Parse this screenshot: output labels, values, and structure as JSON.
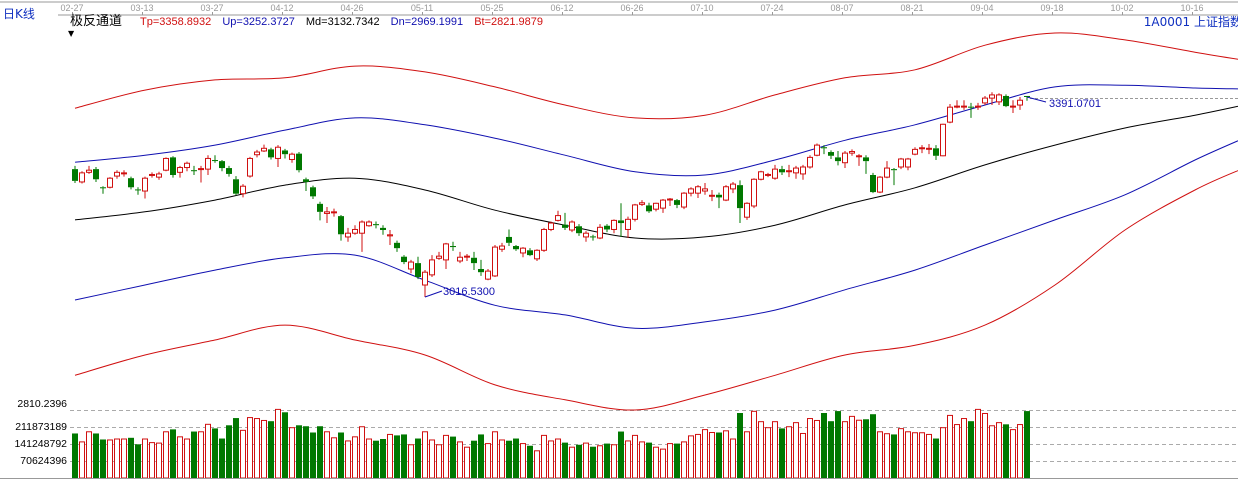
{
  "header": {
    "period": "日K线",
    "indicator_name": "极反通道",
    "params": [
      {
        "label": "Tp=3358.8932",
        "color": "#d01010"
      },
      {
        "label": "Up=3252.3727",
        "color": "#1010b0"
      },
      {
        "label": "Md=3132.7342",
        "color": "#000000"
      },
      {
        "label": "Dn=2969.1991",
        "color": "#1010b0"
      },
      {
        "label": "Bt=2821.9879",
        "color": "#d01010"
      }
    ],
    "symbol": "1A0001  上证指数"
  },
  "chart_data": {
    "type": "candlestick",
    "x_tick_labels": [
      "02-27",
      "03-13",
      "03-27",
      "04-12",
      "04-26",
      "05-11",
      "05-25",
      "06-12",
      "06-26",
      "07-10",
      "07-24",
      "08-07",
      "08-21",
      "09-04",
      "09-18",
      "10-02",
      "10-16"
    ],
    "x_tick_bar_step": 10,
    "candles_ohlc": [
      [
        3256,
        3234,
        3262,
        3230
      ],
      [
        3232,
        3249,
        3252,
        3229
      ],
      [
        3250,
        3254,
        3262,
        3247
      ],
      [
        3256,
        3237,
        3260,
        3232
      ],
      [
        3222,
        3221,
        3224,
        3210
      ],
      [
        3222,
        3239,
        3241,
        3220
      ],
      [
        3243,
        3250,
        3254,
        3238
      ],
      [
        3248,
        3249,
        3254,
        3242
      ],
      [
        3239,
        3222,
        3242,
        3218
      ],
      [
        3218,
        3217,
        3222,
        3208
      ],
      [
        3215,
        3239,
        3242,
        3201
      ],
      [
        3245,
        3246,
        3250,
        3240
      ],
      [
        3241,
        3247,
        3251,
        3236
      ],
      [
        3254,
        3276,
        3278,
        3252
      ],
      [
        3278,
        3245,
        3280,
        3240
      ],
      [
        3250,
        3259,
        3262,
        3240
      ],
      [
        3259,
        3267,
        3270,
        3252
      ],
      [
        3254,
        3253,
        3262,
        3245
      ],
      [
        3256,
        3257,
        3262,
        3231
      ],
      [
        3256,
        3276,
        3282,
        3245
      ],
      [
        3273,
        3272,
        3282,
        3268
      ],
      [
        3271,
        3258,
        3273,
        3252
      ],
      [
        3258,
        3247,
        3262,
        3242
      ],
      [
        3237,
        3210,
        3243,
        3207
      ],
      [
        3210,
        3224,
        3228,
        3203
      ],
      [
        3243,
        3276,
        3279,
        3240
      ],
      [
        3283,
        3288,
        3292,
        3278
      ],
      [
        3290,
        3295,
        3302,
        3288
      ],
      [
        3293,
        3278,
        3296,
        3274
      ],
      [
        3276,
        3297,
        3301,
        3260
      ],
      [
        3291,
        3284,
        3294,
        3276
      ],
      [
        3274,
        3284,
        3287,
        3268
      ],
      [
        3285,
        3254,
        3288,
        3250
      ],
      [
        3237,
        3232,
        3240,
        3215
      ],
      [
        3222,
        3205,
        3225,
        3200
      ],
      [
        3191,
        3176,
        3195,
        3160
      ],
      [
        3173,
        3176,
        3185,
        3155
      ],
      [
        3175,
        3176,
        3182,
        3167
      ],
      [
        3168,
        3134,
        3170,
        3122
      ],
      [
        3129,
        3136,
        3146,
        3120
      ],
      [
        3136,
        3143,
        3151,
        3133
      ],
      [
        3136,
        3157,
        3160,
        3101
      ],
      [
        3150,
        3157,
        3160,
        3148
      ],
      [
        3153,
        3151,
        3158,
        3145
      ],
      [
        3146,
        3142,
        3151,
        3133
      ],
      [
        3131,
        3133,
        3142,
        3114
      ],
      [
        3118,
        3108,
        3122,
        3101
      ],
      [
        3092,
        3082,
        3095,
        3078
      ],
      [
        3069,
        3082,
        3086,
        3061
      ],
      [
        3080,
        3054,
        3092,
        3050
      ],
      [
        3039,
        3063,
        3067,
        3016.53
      ],
      [
        3058,
        3086,
        3095,
        3054
      ],
      [
        3089,
        3093,
        3101,
        3086
      ],
      [
        3086,
        3116,
        3118,
        3069
      ],
      [
        3112,
        3110,
        3120,
        3103
      ],
      [
        3084,
        3091,
        3101,
        3080
      ],
      [
        3092,
        3093,
        3097,
        3084
      ],
      [
        3090,
        3080,
        3101,
        3067
      ],
      [
        3069,
        3063,
        3086,
        3056
      ],
      [
        3050,
        3065,
        3069,
        3048
      ],
      [
        3056,
        3110,
        3114,
        3054
      ],
      [
        3106,
        3112,
        3118,
        3101
      ],
      [
        3129,
        3118,
        3143,
        3112
      ],
      [
        3112,
        3106,
        3114,
        3103
      ],
      [
        3099,
        3108,
        3110,
        3091
      ],
      [
        3104,
        3095,
        3108,
        3093
      ],
      [
        3088,
        3104,
        3106,
        3084
      ],
      [
        3104,
        3143,
        3146,
        3101
      ],
      [
        3143,
        3155,
        3158,
        3140
      ],
      [
        3160,
        3169,
        3178,
        3158
      ],
      [
        3152,
        3146,
        3174,
        3142
      ],
      [
        3142,
        3157,
        3160,
        3138
      ],
      [
        3149,
        3136,
        3153,
        3131
      ],
      [
        3129,
        3136,
        3140,
        3120
      ],
      [
        3130,
        3129,
        3133,
        3122
      ],
      [
        3127,
        3147,
        3153,
        3125
      ],
      [
        3150,
        3143,
        3153,
        3138
      ],
      [
        3143,
        3160,
        3162,
        3136
      ],
      [
        3160,
        3155,
        3192,
        3129
      ],
      [
        3143,
        3162,
        3167,
        3127
      ],
      [
        3162,
        3189,
        3191,
        3158
      ],
      [
        3190,
        3193,
        3198,
        3187
      ],
      [
        3188,
        3177,
        3193,
        3174
      ],
      [
        3181,
        3192,
        3193,
        3177
      ],
      [
        3183,
        3198,
        3200,
        3174
      ],
      [
        3199,
        3200,
        3202,
        3187
      ],
      [
        3198,
        3189,
        3200,
        3183
      ],
      [
        3185,
        3211,
        3213,
        3181
      ],
      [
        3211,
        3219,
        3222,
        3205
      ],
      [
        3211,
        3223,
        3226,
        3202
      ],
      [
        3215,
        3219,
        3230,
        3208
      ],
      [
        3206,
        3207,
        3217,
        3196
      ],
      [
        3208,
        3203,
        3212,
        3183
      ],
      [
        3198,
        3223,
        3226,
        3196
      ],
      [
        3219,
        3228,
        3232,
        3211
      ],
      [
        3226,
        3183,
        3235,
        3155
      ],
      [
        3166,
        3192,
        3194,
        3161
      ],
      [
        3187,
        3237,
        3239,
        3183
      ],
      [
        3237,
        3251,
        3253,
        3235
      ],
      [
        3245,
        3246,
        3249,
        3241
      ],
      [
        3239,
        3256,
        3264,
        3236
      ],
      [
        3256,
        3250,
        3262,
        3245
      ],
      [
        3252,
        3253,
        3264,
        3241
      ],
      [
        3249,
        3258,
        3262,
        3238
      ],
      [
        3247,
        3260,
        3264,
        3236
      ],
      [
        3260,
        3278,
        3282,
        3257
      ],
      [
        3282,
        3301,
        3304,
        3280
      ],
      [
        3297,
        3295,
        3301,
        3284
      ],
      [
        3288,
        3281,
        3291,
        3275
      ],
      [
        3278,
        3271,
        3290,
        3263
      ],
      [
        3268,
        3286,
        3290,
        3258
      ],
      [
        3286,
        3289,
        3293,
        3281
      ],
      [
        3280,
        3281,
        3284,
        3262
      ],
      [
        3278,
        3271,
        3282,
        3247
      ],
      [
        3245,
        3213,
        3249,
        3211
      ],
      [
        3213,
        3241,
        3243,
        3211
      ],
      [
        3241,
        3258,
        3271,
        3239
      ],
      [
        3256,
        3254,
        3258,
        3226
      ],
      [
        3260,
        3275,
        3277,
        3256
      ],
      [
        3260,
        3275,
        3277,
        3254
      ],
      [
        3284,
        3293,
        3297,
        3282
      ],
      [
        3295,
        3296,
        3301,
        3286
      ],
      [
        3294,
        3295,
        3303,
        3284
      ],
      [
        3295,
        3281,
        3301,
        3273
      ],
      [
        3281,
        3340,
        3341,
        3280
      ],
      [
        3344,
        3372,
        3378,
        3342
      ],
      [
        3373,
        3374,
        3385,
        3370
      ],
      [
        3373,
        3374,
        3385,
        3367
      ],
      [
        3373,
        3372,
        3380,
        3352
      ],
      [
        3373,
        3374,
        3380,
        3367
      ],
      [
        3380,
        3389,
        3393,
        3376
      ],
      [
        3389,
        3395,
        3400,
        3376
      ],
      [
        3382,
        3395,
        3398,
        3376
      ],
      [
        3393,
        3374,
        3396,
        3372
      ],
      [
        3373,
        3374,
        3385,
        3361
      ],
      [
        3376,
        3385,
        3391,
        3367
      ],
      [
        3393,
        3392,
        3391.07,
        3384
      ]
    ],
    "volume": [
      185000000,
      150000000,
      192000000,
      185000000,
      160000000,
      158000000,
      162000000,
      162000000,
      167000000,
      140000000,
      162000000,
      147000000,
      145000000,
      192000000,
      202000000,
      171000000,
      162000000,
      193000000,
      192000000,
      223000000,
      206000000,
      164000000,
      219000000,
      249000000,
      198000000,
      251000000,
      247000000,
      239000000,
      236000000,
      285000000,
      273000000,
      209000000,
      219000000,
      215000000,
      189000000,
      215000000,
      192000000,
      167000000,
      189000000,
      154000000,
      171000000,
      213000000,
      162000000,
      155000000,
      162000000,
      181000000,
      177000000,
      181000000,
      138000000,
      164000000,
      192000000,
      158000000,
      138000000,
      177000000,
      172000000,
      150000000,
      128000000,
      155000000,
      181000000,
      143000000,
      192000000,
      158000000,
      155000000,
      164000000,
      143000000,
      134000000,
      113000000,
      177000000,
      154000000,
      162000000,
      147000000,
      128000000,
      138000000,
      145000000,
      130000000,
      134000000,
      143000000,
      138000000,
      193000000,
      154000000,
      177000000,
      150000000,
      147000000,
      128000000,
      120000000,
      143000000,
      143000000,
      150000000,
      175000000,
      181000000,
      201000000,
      189000000,
      189000000,
      196000000,
      162000000,
      270000000,
      192000000,
      277000000,
      234000000,
      209000000,
      234000000,
      206000000,
      213000000,
      230000000,
      185000000,
      247000000,
      239000000,
      270000000,
      236000000,
      278000000,
      234000000,
      256000000,
      240000000,
      244000000,
      265000000,
      192000000,
      184000000,
      181000000,
      205000000,
      192000000,
      188000000,
      188000000,
      181000000,
      164000000,
      209000000,
      260000000,
      222000000,
      247000000,
      236000000,
      285000000,
      268000000,
      217000000,
      230000000,
      223000000,
      201000000,
      222000000,
      278000000
    ],
    "bands_bar_index": [
      0,
      10,
      20,
      30,
      40,
      50,
      60,
      70,
      80,
      90,
      100,
      110,
      120,
      130,
      140,
      150,
      160,
      167
    ],
    "bands": [
      {
        "name": "Tp",
        "color": "#d01010",
        "values": [
          3370,
          3404,
          3423,
          3427,
          3449,
          3438,
          3410,
          3376,
          3352,
          3357,
          3395,
          3427,
          3442,
          3488,
          3511,
          3498,
          3475,
          3460
        ]
      },
      {
        "name": "Up",
        "color": "#1010b0",
        "values": [
          3269,
          3282,
          3301,
          3329,
          3352,
          3339,
          3314,
          3282,
          3251,
          3245,
          3273,
          3310,
          3339,
          3376,
          3410,
          3413,
          3408,
          3406
        ]
      },
      {
        "name": "Md",
        "color": "#000000",
        "values": [
          3161,
          3176,
          3198,
          3226,
          3239,
          3217,
          3179,
          3151,
          3127,
          3129,
          3151,
          3189,
          3221,
          3264,
          3301,
          3333,
          3357,
          3376
        ]
      },
      {
        "name": "Dn",
        "color": "#1010b0",
        "values": [
          3011,
          3039,
          3067,
          3090,
          3095,
          3048,
          3001,
          2983,
          2958,
          2970,
          2992,
          3030,
          3067,
          3114,
          3161,
          3208,
          3273,
          3314
        ]
      },
      {
        "name": "Bt",
        "color": "#d01010",
        "values": [
          2870,
          2908,
          2936,
          2964,
          2936,
          2908,
          2852,
          2824,
          2805,
          2833,
          2870,
          2908,
          2926,
          2964,
          3039,
          3142,
          3217,
          3258
        ]
      }
    ],
    "annotations": [
      {
        "label": "3016.5300",
        "bar": 50,
        "value": 3016.53
      },
      {
        "label": "3391.0701",
        "bar": 136,
        "value": 3391.07
      }
    ],
    "volume_axis_labels": [
      "2810.2396",
      "211873189",
      "141248792",
      "70624396"
    ],
    "volume_gridlines": [
      282498784,
      211873189,
      141248792,
      70624396
    ],
    "up_color": "#d01010",
    "down_color": "#007800"
  }
}
